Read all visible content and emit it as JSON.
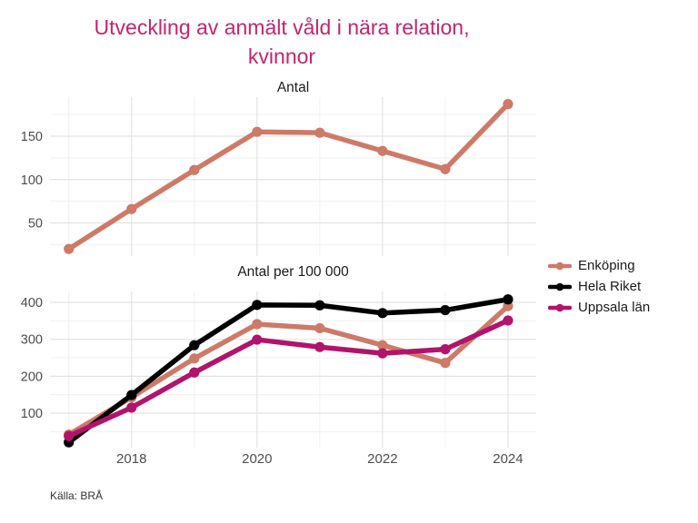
{
  "title": {
    "line1": "Utveckling av anmält våld i nära relation,",
    "line2": "kvinnor"
  },
  "caption": "Källa: BRÅ",
  "colors": {
    "title": "#c2256e",
    "axis_text": "#4d4d4d",
    "grid_major": "#e3e3e3",
    "grid_minor": "#f0f0f0",
    "enkoping": "#cd7a68",
    "hela_riket": "#000000",
    "uppsala_lan": "#b2136b"
  },
  "legend": {
    "position": "right",
    "items": [
      {
        "label": "Enköping",
        "color": "#cd7a68"
      },
      {
        "label": "Hela Riket",
        "color": "#000000"
      },
      {
        "label": "Uppsala län",
        "color": "#b2136b"
      }
    ]
  },
  "chart_data": [
    {
      "type": "line",
      "title": "Antal",
      "x": [
        2017,
        2018,
        2019,
        2020,
        2021,
        2022,
        2023,
        2024
      ],
      "xticks": [
        2018,
        2020,
        2022,
        2024
      ],
      "yticks": [
        50,
        100,
        150
      ],
      "xlim": [
        2016.7,
        2024.45
      ],
      "ylim": [
        11.8,
        195
      ],
      "grid": true,
      "series": [
        {
          "name": "Enköping",
          "color": "#cd7a68",
          "values": [
            20,
            66,
            111,
            155,
            154,
            133,
            112,
            187
          ]
        }
      ]
    },
    {
      "type": "line",
      "title": "Antal per 100 000",
      "x": [
        2017,
        2018,
        2019,
        2020,
        2021,
        2022,
        2023,
        2024
      ],
      "xticks": [
        2018,
        2020,
        2022,
        2024
      ],
      "yticks": [
        100,
        200,
        300,
        400
      ],
      "xlim": [
        2016.7,
        2024.45
      ],
      "ylim": [
        6.6,
        429.5
      ],
      "grid": true,
      "series": [
        {
          "name": "Enköping",
          "color": "#cd7a68",
          "values": [
            42,
            143,
            248,
            341,
            330,
            284,
            236,
            390
          ]
        },
        {
          "name": "Hela Riket",
          "color": "#000000",
          "values": [
            21,
            149,
            284,
            393,
            392,
            371,
            379,
            408
          ]
        },
        {
          "name": "Uppsala län",
          "color": "#b2136b",
          "values": [
            38,
            115,
            210,
            299,
            279,
            262,
            273,
            351
          ]
        }
      ]
    }
  ]
}
